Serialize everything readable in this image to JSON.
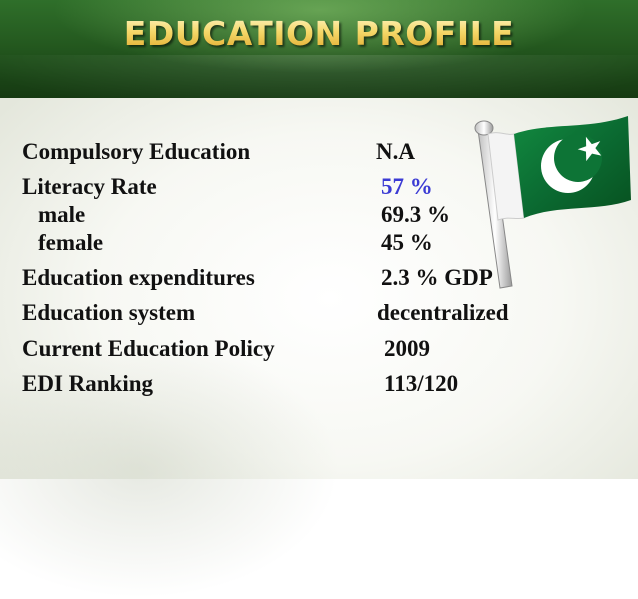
{
  "slide": {
    "title": "EDUCATION PROFILE"
  },
  "rows": [
    {
      "label": "Compulsory Education",
      "value": "N.A"
    },
    {
      "label": "Literacy Rate",
      "value": "57 %"
    },
    {
      "label": "male",
      "value": "69.3 %"
    },
    {
      "label": "female",
      "value": "45 %"
    },
    {
      "label": "Education expenditures",
      "value": "2.3 % GDP"
    },
    {
      "label": "Education system",
      "value": "decentralized"
    },
    {
      "label": "Current Education Policy",
      "value": "2009"
    },
    {
      "label": "EDI Ranking",
      "value": "113/120"
    }
  ],
  "colors": {
    "header_green": "#24591f",
    "title_gold": "#f5d86a",
    "highlight_blue": "#3b3bd4",
    "flag_green": "#0b6b32"
  },
  "icons": {
    "flag": "pakistan-flag-icon"
  }
}
